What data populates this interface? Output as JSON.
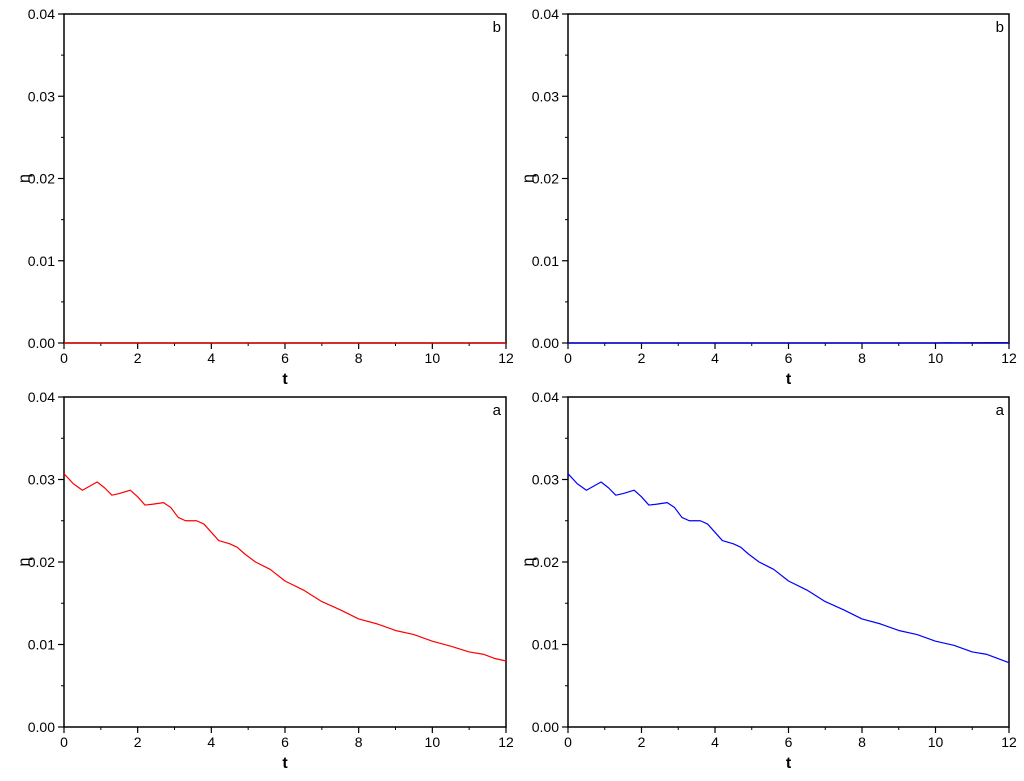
{
  "chart_data": [
    {
      "type": "line",
      "panel_label": "b",
      "xlabel": "t",
      "ylabel": "η",
      "xlim": [
        0,
        12
      ],
      "ylim": [
        0,
        0.04
      ],
      "xticks": [
        "0",
        "2",
        "4",
        "6",
        "8",
        "10",
        "12"
      ],
      "yticks": [
        "0.00",
        "0.01",
        "0.02",
        "0.03",
        "0.04"
      ],
      "grid": false,
      "series": [
        {
          "color": "#ff0000",
          "x": [
            0,
            12
          ],
          "y": [
            0.0,
            0.0
          ]
        }
      ]
    },
    {
      "type": "line",
      "panel_label": "b",
      "xlabel": "t",
      "ylabel": "η",
      "xlim": [
        0,
        12
      ],
      "ylim": [
        0,
        0.04
      ],
      "xticks": [
        "0",
        "2",
        "4",
        "6",
        "8",
        "10",
        "12"
      ],
      "yticks": [
        "0.00",
        "0.01",
        "0.02",
        "0.03",
        "0.04"
      ],
      "grid": false,
      "series": [
        {
          "color": "#0000ff",
          "x": [
            0,
            2,
            4,
            6,
            8,
            10,
            10.3,
            10.6,
            11,
            11.5,
            12
          ],
          "y": [
            0.0,
            0.0,
            0.0,
            0.0,
            0.0,
            0.0,
            3e-05,
            2e-05,
            4e-05,
            5e-05,
            5e-05
          ]
        }
      ]
    },
    {
      "type": "line",
      "panel_label": "a",
      "xlabel": "t",
      "ylabel": "η",
      "xlim": [
        0,
        12
      ],
      "ylim": [
        0,
        0.04
      ],
      "xticks": [
        "0",
        "2",
        "4",
        "6",
        "8",
        "10",
        "12"
      ],
      "yticks": [
        "0.00",
        "0.01",
        "0.02",
        "0.03",
        "0.04"
      ],
      "grid": false,
      "series": [
        {
          "color": "#ff0000",
          "x": [
            0,
            0.25,
            0.5,
            0.7,
            0.9,
            1.1,
            1.3,
            1.5,
            1.8,
            2.0,
            2.2,
            2.4,
            2.7,
            2.9,
            3.1,
            3.3,
            3.6,
            3.8,
            4.0,
            4.2,
            4.5,
            4.7,
            4.9,
            5.2,
            5.6,
            6.0,
            6.5,
            7.0,
            7.5,
            8.0,
            8.5,
            9.0,
            9.5,
            10.0,
            10.5,
            11.0,
            11.4,
            11.7,
            12.0
          ],
          "y": [
            0.0307,
            0.0295,
            0.0287,
            0.0292,
            0.0297,
            0.029,
            0.0281,
            0.0283,
            0.0287,
            0.0279,
            0.0269,
            0.027,
            0.0272,
            0.0266,
            0.0254,
            0.025,
            0.025,
            0.0246,
            0.0236,
            0.0226,
            0.0222,
            0.0218,
            0.021,
            0.02,
            0.0191,
            0.0177,
            0.0166,
            0.0152,
            0.0142,
            0.0131,
            0.0125,
            0.0117,
            0.0112,
            0.0104,
            0.0098,
            0.0091,
            0.0088,
            0.0083,
            0.008
          ]
        }
      ]
    },
    {
      "type": "line",
      "panel_label": "a",
      "xlabel": "t",
      "ylabel": "η",
      "xlim": [
        0,
        12
      ],
      "ylim": [
        0,
        0.04
      ],
      "xticks": [
        "0",
        "2",
        "4",
        "6",
        "8",
        "10",
        "12"
      ],
      "yticks": [
        "0.00",
        "0.01",
        "0.02",
        "0.03",
        "0.04"
      ],
      "grid": false,
      "series": [
        {
          "color": "#0000ff",
          "x": [
            0,
            0.25,
            0.5,
            0.7,
            0.9,
            1.1,
            1.3,
            1.5,
            1.8,
            2.0,
            2.2,
            2.4,
            2.7,
            2.9,
            3.1,
            3.3,
            3.6,
            3.8,
            4.0,
            4.2,
            4.5,
            4.7,
            4.9,
            5.2,
            5.6,
            6.0,
            6.5,
            7.0,
            7.5,
            8.0,
            8.5,
            9.0,
            9.5,
            10.0,
            10.5,
            11.0,
            11.4,
            11.7,
            12.0
          ],
          "y": [
            0.0307,
            0.0295,
            0.0287,
            0.0292,
            0.0297,
            0.029,
            0.0281,
            0.0283,
            0.0287,
            0.0279,
            0.0269,
            0.027,
            0.0272,
            0.0266,
            0.0254,
            0.025,
            0.025,
            0.0246,
            0.0236,
            0.0226,
            0.0222,
            0.0218,
            0.021,
            0.02,
            0.0191,
            0.0177,
            0.0166,
            0.0152,
            0.0142,
            0.0131,
            0.0125,
            0.0117,
            0.0112,
            0.0104,
            0.0099,
            0.0091,
            0.0088,
            0.0083,
            0.0078
          ]
        }
      ]
    }
  ]
}
